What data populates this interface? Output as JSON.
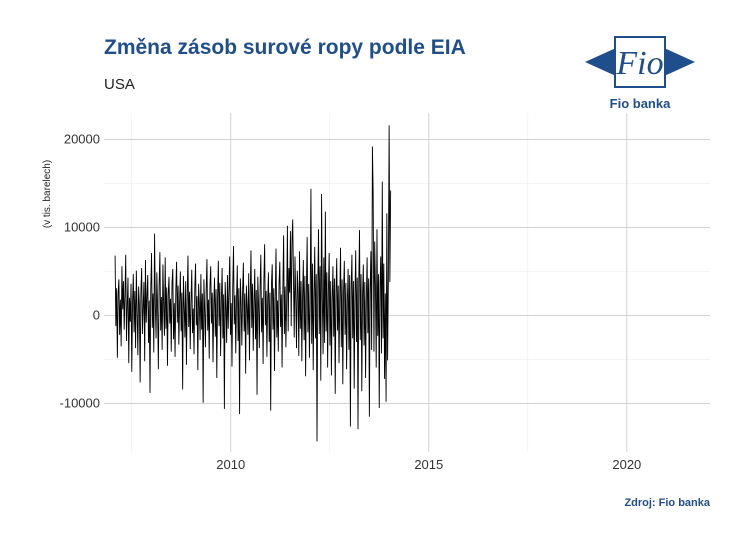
{
  "header": {
    "title": "Změna zásob surové ropy podle EIA",
    "subtitle": "USA"
  },
  "brand": {
    "logo_text": "Fio",
    "name": "Fio banka",
    "color": "#1f4e8c"
  },
  "caption": "Zdroj: Fio banka",
  "chart_data": {
    "type": "line",
    "title": "Změna zásob surové ropy podle EIA",
    "subtitle": "USA",
    "xlabel": "",
    "ylabel": "(v tis. barelech)",
    "xlim": [
      2006.8,
      2022.1
    ],
    "ylim": [
      -15500,
      23000
    ],
    "x_ticks": [
      2010,
      2015,
      2020
    ],
    "x_tick_labels": [
      "2010",
      "2015",
      "2020"
    ],
    "y_ticks": [
      -10000,
      0,
      10000,
      20000
    ],
    "y_tick_labels": [
      "-10000",
      "0",
      "10000",
      "20000"
    ],
    "grid": true,
    "legend": "none",
    "line_color": "#000000",
    "series": [
      {
        "x_start": 2007.08,
        "step_weeks": 1,
        "values": [
          6800,
          -1200,
          3100,
          -4800,
          2500,
          4100,
          -2200,
          1800,
          -3500,
          5600,
          700,
          3900,
          -1600,
          2400,
          6900,
          -2900,
          1100,
          4300,
          -5400,
          2000,
          -700,
          3600,
          -6400,
          1500,
          4700,
          -1900,
          2800,
          -3700,
          5100,
          600,
          -4500,
          3300,
          1200,
          -7600,
          2700,
          5400,
          -2100,
          900,
          3800,
          -5200,
          6300,
          -800,
          2200,
          4600,
          -3100,
          1700,
          -8800,
          3000,
          7100,
          -1400,
          2500,
          -4200,
          9300,
          1300,
          -2600,
          4900,
          800,
          -6100,
          3500,
          7200,
          -1700,
          2100,
          -3900,
          5800,
          1000,
          -2300,
          6600,
          -1500,
          3200,
          -5700,
          2400,
          4400,
          -900,
          1900,
          -4100,
          3700,
          5300,
          -2700,
          1400,
          -4700,
          2900,
          6100,
          -800,
          3400,
          -3300,
          1600,
          5000,
          -1800,
          2600,
          -8400,
          4500,
          1100,
          -2500,
          3900,
          -5600,
          2000,
          6800,
          -1300,
          2700,
          -3800,
          1500,
          5200,
          -2000,
          800,
          -4400,
          3100,
          5900,
          -1100,
          2200,
          -6200,
          3600,
          1300,
          -2800,
          4700,
          -1600,
          2500,
          -9900,
          4100,
          700,
          -3600,
          2900,
          6400,
          -1700,
          1800,
          -4900,
          3500,
          5600,
          -900,
          2600,
          -5300,
          1200,
          4300,
          -2400,
          3000,
          -7100,
          2100,
          6200,
          -1200,
          3700,
          -4600,
          1700,
          5400,
          -2600,
          2400,
          -10600,
          3800,
          900,
          -3100,
          4600,
          -1500,
          2800,
          6700,
          -2200,
          1400,
          -5800,
          3300,
          7900,
          -1000,
          2300,
          -4300,
          1900,
          5700,
          -2900,
          3100,
          -11200,
          4200,
          1500,
          -3400,
          2700,
          6000,
          -1800,
          2500,
          -6600,
          3400,
          1000,
          -2200,
          4800,
          -5100,
          2200,
          7400,
          -1400,
          3600,
          -4000,
          1600,
          5300,
          -2700,
          2900,
          -9000,
          4400,
          1200,
          -3700,
          3200,
          6900,
          -1900,
          2000,
          -5500,
          3900,
          8100,
          -1100,
          2800,
          -4700,
          1800,
          4900,
          -3000,
          2600,
          -10800,
          3500,
          5800,
          -1600,
          3100,
          -6300,
          2300,
          7600,
          -2500,
          1700,
          -4100,
          3700,
          6100,
          -1300,
          2400,
          -5900,
          2900,
          9100,
          -2100,
          3300,
          -3600,
          1500,
          10200,
          -1800,
          5400,
          2600,
          9600,
          -1200,
          8400,
          10900,
          4200,
          -2500,
          6700,
          1900,
          -3700,
          5100,
          2800,
          -4600,
          7300,
          -1500,
          3900,
          -5200,
          2100,
          6300,
          -2800,
          4500,
          -6900,
          2700,
          8900,
          -1900,
          3600,
          -4800,
          1600,
          14400,
          -3200,
          5900,
          -6200,
          2400,
          7800,
          -2600,
          4700,
          -14300,
          3300,
          9800,
          -2100,
          5600,
          -7400,
          13800,
          2100,
          -4400,
          6600,
          -3100,
          11800,
          -1800,
          4900,
          -5900,
          2700,
          7100,
          -3400,
          3900,
          -6800,
          1900,
          5600,
          -2400,
          4200,
          -8900,
          2600,
          6500,
          -1700,
          3400,
          -5400,
          2000,
          7700,
          -3600,
          4100,
          -7800,
          2800,
          6200,
          -2200,
          3700,
          -6100,
          1700,
          5300,
          -3900,
          4600,
          -12600,
          3200,
          6900,
          -2600,
          3900,
          -8300,
          2400,
          7400,
          -3000,
          4300,
          -12900,
          3600,
          9700,
          -2800,
          4700,
          -8600,
          2300,
          5800,
          -3400,
          3800,
          -7100,
          1900,
          6600,
          -2000,
          4200,
          -11500,
          2900,
          7300,
          -3900,
          19200,
          13700,
          -4100,
          8400,
          3200,
          -5900,
          9800,
          -2300,
          4700,
          -10500,
          3400,
          6700,
          -4300,
          15200,
          -2600,
          5900,
          -7200,
          2500,
          -9800,
          11600,
          -5100,
          4300,
          21600,
          3800,
          14200
        ]
      }
    ]
  }
}
